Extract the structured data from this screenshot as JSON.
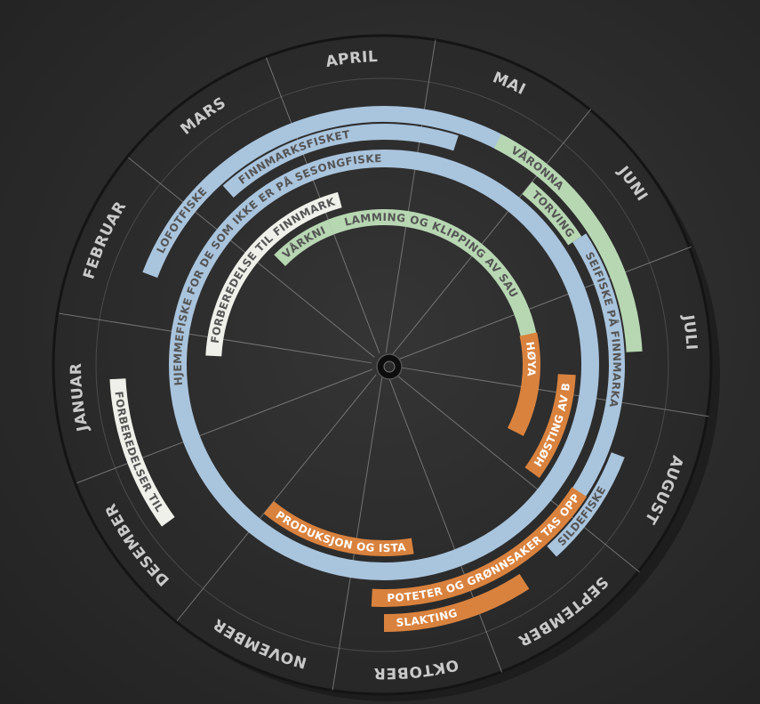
{
  "wheel": {
    "months": [
      "JANUAR",
      "FEBRUAR",
      "MARS",
      "APRIL",
      "MAI",
      "JUNI",
      "JULI",
      "AUGUST",
      "SEPTEMBER",
      "OKTOBER",
      "NOVEMBER",
      "DESEMBER"
    ],
    "colors": {
      "blue": "#a9c4dd",
      "orange": "#d9823e",
      "green": "#b7d7b2",
      "white": "#f0f0ea",
      "grey": "#9c9c9c",
      "text_dark": "#ffffff",
      "text_light": "#555555"
    },
    "activities": [
      {
        "label": "FORBEREDELSER TIL LOFOTFISKE",
        "color": "white",
        "start_month": 11.5,
        "end_month": 12.6
      },
      {
        "label": "LOFOTFISKE",
        "color": "blue",
        "start_month": 1.4,
        "end_month": 4.9
      },
      {
        "label": "HJEMMEFISKE FOR DE SOM IKKE ER PÅ SESONGFISKE",
        "color": "blue",
        "start_month": 0.0,
        "end_month": 12.0
      },
      {
        "label": "FORBEREDELSE TIL FINNMARKSFISKE",
        "color": "white",
        "start_month": 0.8,
        "end_month": 3.2
      },
      {
        "label": "FINNMARKSFISKET",
        "color": "blue",
        "start_month": 2.3,
        "end_month": 4.3
      },
      {
        "label": "VÅRKNIPE",
        "color": "green",
        "start_month": 2.2,
        "end_month": 3.0
      },
      {
        "label": "LAMMING OG KLIPPING AV SAU",
        "color": "green",
        "start_month": 3.0,
        "end_month": 6.4
      },
      {
        "label": "TORVING",
        "color": "green",
        "start_month": 5.0,
        "end_month": 5.6
      },
      {
        "label": "VÅRONNA",
        "color": "green",
        "start_month": 4.6,
        "end_month": 6.6
      },
      {
        "label": "SEIFISKE PÅ FINNMARKA",
        "color": "blue",
        "start_month": 5.6,
        "end_month": 8.0
      },
      {
        "label": "HØYA",
        "color": "orange",
        "start_month": 6.3,
        "end_month": 7.6
      },
      {
        "label": "HØSTING AV BÆR",
        "color": "orange",
        "start_month": 6.8,
        "end_month": 7.9
      },
      {
        "label": "SILDEFISKE",
        "color": "blue",
        "start_month": 7.4,
        "end_month": 8.3
      },
      {
        "label": "POTETER OG GRØNNSAKER TAS OPP",
        "color": "orange",
        "start_month": 7.8,
        "end_month": 9.8
      },
      {
        "label": "SLAKTING",
        "color": "orange",
        "start_month": 8.6,
        "end_month": 9.7
      },
      {
        "label": "PRODUKSJON OG ISTANDSETTING AV KLÆR",
        "color": "orange",
        "start_month": 9.4,
        "end_month": 11.0
      }
    ]
  }
}
